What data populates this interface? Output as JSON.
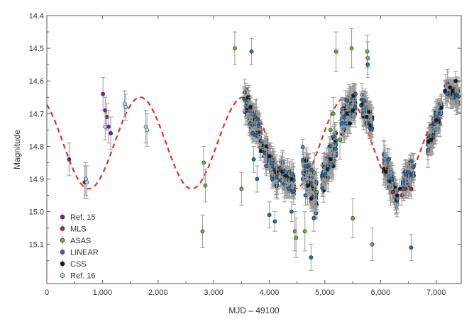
{
  "chart_data": {
    "type": "scatter",
    "title": "",
    "xlabel": "MJD – 49100",
    "ylabel": "Magnitude",
    "xlim": [
      0,
      7450
    ],
    "ylim": [
      15.22,
      14.4
    ],
    "y_inverted": true,
    "x_ticks": [
      0,
      1000,
      2000,
      3000,
      4000,
      5000,
      6000,
      7000
    ],
    "x_tick_labels": [
      "0",
      "1,000",
      "2,000",
      "3,000",
      "4,000",
      "5,000",
      "6,000",
      "7,000"
    ],
    "y_ticks": [
      14.4,
      14.5,
      14.6,
      14.7,
      14.8,
      14.9,
      15.0,
      15.1
    ],
    "y_tick_labels": [
      "14.4",
      "14.5",
      "14.6",
      "14.7",
      "14.8",
      "14.9",
      "15.0",
      "15.1"
    ],
    "grid": false,
    "legend_position": "bottom-left",
    "model_curve": {
      "style": "dashed",
      "color": "#e0302a",
      "period": 1850,
      "mean": 14.79,
      "amplitude": 0.14,
      "phase_ref_min": 1680,
      "x_range": [
        0,
        7400
      ]
    },
    "series": [
      {
        "name": "Ref. 15",
        "color": "#6b2a7e",
        "points": [
          [
            400,
            14.84,
            0.05
          ],
          [
            680,
            14.91,
            0.05
          ],
          [
            1010,
            14.64,
            0.05
          ],
          [
            1050,
            14.69,
            0.04
          ],
          [
            1080,
            14.71,
            0.04
          ],
          [
            1110,
            14.74,
            0.05
          ],
          [
            1150,
            14.76,
            0.05
          ]
        ]
      },
      {
        "name": "MLS",
        "color": "#a8322e",
        "points": [
          [
            6220,
            14.94,
            0.03
          ],
          [
            6380,
            14.95,
            0.03
          ],
          [
            6450,
            14.93,
            0.03
          ],
          [
            6550,
            14.93,
            0.03
          ]
        ]
      },
      {
        "name": "ASAS",
        "color": "#6fae3c",
        "points": [
          [
            2820,
            14.85,
            0.05
          ],
          [
            2850,
            14.92,
            0.05
          ],
          [
            2800,
            15.06,
            0.05
          ],
          [
            3380,
            14.5,
            0.05
          ],
          [
            3500,
            14.93,
            0.05
          ],
          [
            4460,
            15.06,
            0.06
          ],
          [
            4480,
            15.08,
            0.06
          ],
          [
            4640,
            15.06,
            0.06
          ],
          [
            4810,
            14.88,
            0.06
          ],
          [
            4850,
            14.94,
            0.06
          ],
          [
            5100,
            14.75,
            0.06
          ],
          [
            5150,
            14.7,
            0.05
          ],
          [
            5200,
            14.51,
            0.06
          ],
          [
            5270,
            14.78,
            0.06
          ],
          [
            5480,
            14.5,
            0.06
          ],
          [
            5500,
            15.02,
            0.06
          ],
          [
            5760,
            14.51,
            0.05
          ],
          [
            5770,
            14.53,
            0.05
          ],
          [
            5850,
            15.1,
            0.05
          ]
        ]
      },
      {
        "name": "LINEAR",
        "color": "#2c6fa8",
        "points": [
          [
            3620,
            14.66,
            0.03
          ],
          [
            3640,
            14.69,
            0.03
          ],
          [
            3660,
            14.73,
            0.03
          ],
          [
            3680,
            14.51,
            0.04
          ],
          [
            3700,
            14.76,
            0.03
          ],
          [
            3720,
            14.84,
            0.04
          ],
          [
            3740,
            14.71,
            0.03
          ],
          [
            3780,
            14.9,
            0.04
          ],
          [
            3920,
            14.82,
            0.03
          ],
          [
            3950,
            14.86,
            0.03
          ],
          [
            4000,
            15.01,
            0.04
          ],
          [
            4050,
            14.9,
            0.03
          ],
          [
            4100,
            15.03,
            0.03
          ],
          [
            4300,
            14.88,
            0.03
          ],
          [
            4350,
            14.93,
            0.03
          ],
          [
            4400,
            15.0,
            0.03
          ],
          [
            4650,
            14.95,
            0.03
          ],
          [
            4700,
            14.91,
            0.03
          ],
          [
            4750,
            15.14,
            0.04
          ],
          [
            4800,
            15.02,
            0.04
          ],
          [
            5050,
            14.86,
            0.03
          ],
          [
            5100,
            14.8,
            0.03
          ],
          [
            5150,
            14.77,
            0.03
          ],
          [
            5300,
            14.73,
            0.03
          ],
          [
            5400,
            14.66,
            0.03
          ],
          [
            5450,
            14.7,
            0.03
          ],
          [
            5550,
            14.64,
            0.03
          ],
          [
            5700,
            14.66,
            0.03
          ],
          [
            5750,
            14.73,
            0.03
          ],
          [
            5770,
            14.55,
            0.04
          ],
          [
            6150,
            14.84,
            0.03
          ],
          [
            6200,
            14.9,
            0.03
          ],
          [
            6300,
            14.96,
            0.03
          ],
          [
            6400,
            14.93,
            0.03
          ],
          [
            6500,
            14.88,
            0.03
          ],
          [
            6550,
            15.11,
            0.04
          ],
          [
            6900,
            14.77,
            0.03
          ],
          [
            7000,
            14.71,
            0.03
          ]
        ]
      },
      {
        "name": "CSS",
        "color": "#1a1a1a",
        "points": [
          [
            3620,
            14.65,
            0.03
          ],
          [
            3660,
            14.68,
            0.03
          ],
          [
            3950,
            14.8,
            0.03
          ],
          [
            4000,
            14.83,
            0.03
          ],
          [
            4300,
            14.89,
            0.03
          ],
          [
            4400,
            14.9,
            0.03
          ],
          [
            4700,
            14.92,
            0.03
          ],
          [
            4750,
            14.96,
            0.03
          ],
          [
            5050,
            14.87,
            0.03
          ],
          [
            5100,
            14.84,
            0.03
          ],
          [
            5400,
            14.7,
            0.03
          ],
          [
            5450,
            14.73,
            0.03
          ],
          [
            5500,
            14.69,
            0.03
          ],
          [
            5750,
            14.71,
            0.03
          ],
          [
            6300,
            14.95,
            0.03
          ],
          [
            6350,
            14.93,
            0.03
          ],
          [
            6900,
            14.78,
            0.03
          ],
          [
            7000,
            14.72,
            0.03
          ],
          [
            7250,
            14.62,
            0.03
          ],
          [
            7300,
            14.63,
            0.03
          ],
          [
            7350,
            14.6,
            0.03
          ]
        ]
      },
      {
        "name": "Ref. 16",
        "color": "#b7dbea",
        "points": [
          [
            1050,
            14.74,
            0.04
          ],
          [
            1400,
            14.67,
            0.04
          ],
          [
            1420,
            14.68,
            0.04
          ],
          [
            1780,
            14.74,
            0.05
          ],
          [
            1800,
            14.75,
            0.05
          ],
          [
            700,
            14.9,
            0.05
          ],
          [
            720,
            14.91,
            0.05
          ]
        ]
      }
    ],
    "dense_clusters": [
      {
        "x_range": [
          3550,
          3850
        ],
        "y_center_start": 14.65,
        "y_center_end": 14.78,
        "spread": 0.05,
        "count": 120
      },
      {
        "x_range": [
          3900,
          4150
        ],
        "y_center_start": 14.8,
        "y_center_end": 14.9,
        "spread": 0.04,
        "count": 80
      },
      {
        "x_range": [
          4200,
          4450
        ],
        "y_center_start": 14.88,
        "y_center_end": 14.92,
        "spread": 0.04,
        "count": 70
      },
      {
        "x_range": [
          4600,
          4850
        ],
        "y_center_start": 14.85,
        "y_center_end": 14.96,
        "spread": 0.06,
        "count": 120
      },
      {
        "x_range": [
          4950,
          5200
        ],
        "y_center_start": 14.9,
        "y_center_end": 14.8,
        "spread": 0.05,
        "count": 100
      },
      {
        "x_range": [
          5300,
          5550
        ],
        "y_center_start": 14.72,
        "y_center_end": 14.66,
        "spread": 0.05,
        "count": 100
      },
      {
        "x_range": [
          5650,
          5850
        ],
        "y_center_start": 14.66,
        "y_center_end": 14.74,
        "spread": 0.04,
        "count": 80
      },
      {
        "x_range": [
          6050,
          6300
        ],
        "y_center_start": 14.84,
        "y_center_end": 14.96,
        "spread": 0.04,
        "count": 90
      },
      {
        "x_range": [
          6400,
          6600
        ],
        "y_center_start": 14.92,
        "y_center_end": 14.86,
        "spread": 0.04,
        "count": 60
      },
      {
        "x_range": [
          6850,
          7100
        ],
        "y_center_start": 14.8,
        "y_center_end": 14.68,
        "spread": 0.04,
        "count": 100
      },
      {
        "x_range": [
          7150,
          7400
        ],
        "y_center_start": 14.62,
        "y_center_end": 14.65,
        "spread": 0.03,
        "count": 60
      }
    ]
  }
}
